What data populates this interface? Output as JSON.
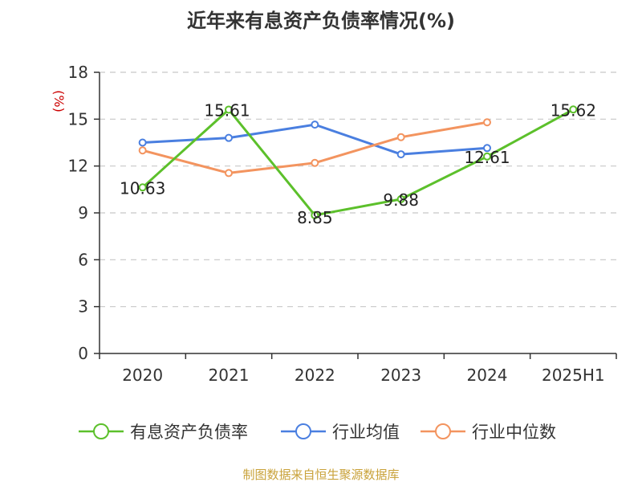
{
  "chart_data": {
    "type": "line",
    "title": "近年来有息资产负债率情况(%)",
    "y_unit": "(%)",
    "categories": [
      "2020",
      "2021",
      "2022",
      "2023",
      "2024",
      "2025H1"
    ],
    "ylim": [
      0,
      18
    ],
    "yticks": [
      0,
      3,
      6,
      9,
      12,
      15,
      18
    ],
    "grid": true,
    "legend_position": "bottom",
    "series": [
      {
        "name": "有息资产负债率",
        "color": "#5cc02b",
        "values": [
          10.63,
          15.61,
          8.85,
          9.88,
          12.61,
          15.62
        ],
        "labels": [
          "10.63",
          "15.61",
          "8.85",
          "9.88",
          "12.61",
          "15.62"
        ]
      },
      {
        "name": "行业均值",
        "color": "#4a7fe0",
        "values": [
          13.5,
          13.8,
          14.65,
          12.75,
          13.15,
          null
        ]
      },
      {
        "name": "行业中位数",
        "color": "#f3945f",
        "values": [
          13.0,
          11.55,
          12.2,
          13.85,
          14.8,
          null
        ]
      }
    ]
  },
  "source": {
    "text": "制图数据来自恒生聚源数据库",
    "color": "#c9a23a"
  },
  "colors": {
    "axis": "#333333",
    "grid": "#c8c8c8",
    "unit": "#cc0000"
  }
}
